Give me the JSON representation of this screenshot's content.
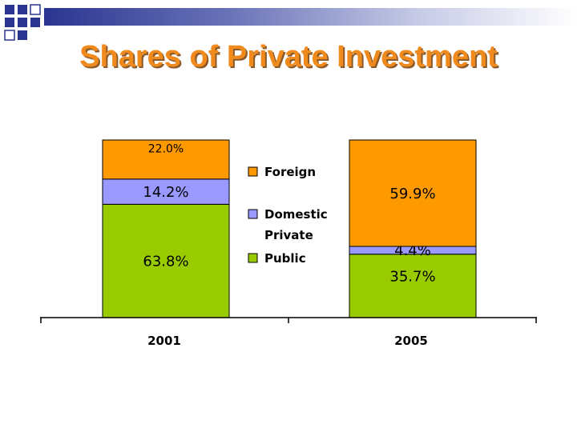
{
  "slide": {
    "title": "Shares of Private Investment"
  },
  "colors": {
    "title": "#f08a1c",
    "band_dark": "#2b3590",
    "deco_square": "#2b3590"
  },
  "chart_data": {
    "type": "bar",
    "stacked": true,
    "categories": [
      "2001",
      "2005"
    ],
    "series": [
      {
        "name": "Public",
        "color": "#99cc00",
        "values": [
          63.8,
          35.7
        ],
        "labels": [
          "63.8%",
          "35.7%"
        ]
      },
      {
        "name": "Domestic Private",
        "color": "#9999ff",
        "values": [
          14.2,
          4.4
        ],
        "labels": [
          "14.2%",
          "4.4%"
        ]
      },
      {
        "name": "Foreign",
        "color": "#ff9900",
        "values": [
          22.0,
          59.9
        ],
        "labels": [
          "22.0%",
          "59.9%"
        ]
      }
    ],
    "legend": {
      "placement": "center",
      "items": [
        {
          "label_lines": [
            "Foreign"
          ],
          "color": "#ff9900"
        },
        {
          "label_lines": [
            "Domestic",
            "Private"
          ],
          "color": "#9999ff"
        },
        {
          "label_lines": [
            "Public"
          ],
          "color": "#99cc00"
        }
      ]
    },
    "ylim": [
      0,
      100
    ]
  }
}
